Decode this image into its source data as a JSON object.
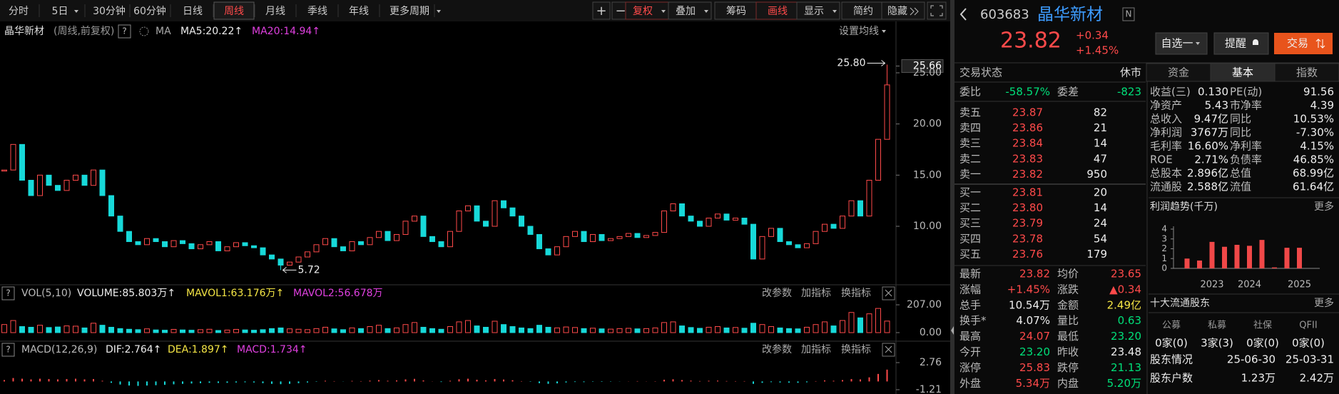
{
  "toolbar": {
    "periods": [
      "分时",
      "5日",
      "30分钟",
      "60分钟",
      "日线",
      "周线",
      "月线",
      "季线",
      "年线",
      "更多周期"
    ],
    "active_period_index": 5,
    "tools": [
      "+",
      "−",
      "复权",
      "叠加",
      "筹码",
      "画线",
      "显示",
      "简约",
      "隐藏"
    ],
    "highlight_tool_indexes": [
      2,
      5
    ]
  },
  "price_chart": {
    "stock_name": "晶华新材",
    "params": "(周线,前复权)",
    "help": "?",
    "ma_label": "MA",
    "ma5": "MA5:20.22↑",
    "ma20": "MA20:14.94↑",
    "settings": "设置均线",
    "ylim": [
      4.56,
      27.93
    ],
    "yticks": [
      25.66,
      {
        "value": 25,
        "label": "25.00"
      },
      {
        "value": 20,
        "label": "20.00"
      },
      {
        "value": 15,
        "label": "15.00"
      },
      {
        "value": 10,
        "label": "10.00"
      }
    ],
    "closes": [
      15.5,
      18.0,
      14.5,
      13.0,
      15.0,
      14.0,
      13.5,
      14.5,
      15.0,
      14.0,
      15.5,
      13.0,
      11.0,
      9.5,
      8.5,
      8.2,
      8.8,
      8.5,
      8.0,
      8.6,
      8.3,
      7.8,
      8.2,
      8.5,
      7.6,
      8.0,
      8.4,
      8.1,
      7.9,
      7.2,
      6.8,
      6.2,
      6.5,
      7.0,
      7.5,
      8.2,
      8.8,
      8.0,
      7.6,
      8.5,
      8.2,
      8.9,
      9.5,
      8.6,
      9.2,
      10.5,
      11.0,
      9.0,
      8.5,
      8.0,
      9.5,
      11.5,
      12.0,
      10.5,
      10.0,
      12.5,
      11.8,
      11.0,
      10.0,
      9.2,
      7.8,
      7.2,
      8.0,
      9.0,
      9.5,
      8.5,
      9.2,
      8.6,
      8.8,
      9.0,
      9.3,
      8.9,
      9.1,
      9.4,
      11.5,
      12.2,
      11.0,
      10.5,
      10.0,
      10.8,
      11.2,
      10.6,
      10.8,
      10.2,
      6.8,
      9.0,
      9.8,
      8.5,
      8.2,
      7.9,
      8.3,
      9.5,
      10.2,
      9.8,
      11.0,
      12.5,
      11.0,
      14.5,
      18.5,
      23.82
    ],
    "high_marker": {
      "value": 25.8,
      "label": "25.80"
    },
    "low_marker": {
      "value": 5.72,
      "label": "5.72"
    }
  },
  "volume_panel": {
    "help": "?",
    "title": "VOL(5,10)",
    "volume": "VOLUME:85.803万↑",
    "mavol1": "MAVOL1:63.176万↑",
    "mavol2": "MAVOL2:56.678万",
    "buttons": [
      "改参数",
      "加指标",
      "换指标"
    ],
    "ylim": [
      0,
      255
    ],
    "yticks": [
      {
        "value": 207,
        "label": "207.00"
      },
      {
        "value": 0,
        "label": "0.00"
      }
    ],
    "values": [
      60,
      90,
      45,
      40,
      55,
      38,
      42,
      50,
      48,
      35,
      70,
      55,
      40,
      30,
      25,
      22,
      28,
      20,
      18,
      24,
      20,
      18,
      22,
      25,
      16,
      19,
      24,
      20,
      18,
      22,
      30,
      35,
      28,
      25,
      22,
      30,
      40,
      28,
      22,
      35,
      30,
      45,
      55,
      30,
      35,
      60,
      75,
      40,
      30,
      25,
      45,
      80,
      90,
      50,
      40,
      85,
      60,
      45,
      35,
      30,
      55,
      40,
      35,
      42,
      38,
      30,
      33,
      28,
      26,
      30,
      32,
      28,
      30,
      35,
      75,
      80,
      50,
      38,
      32,
      40,
      45,
      35,
      38,
      33,
      70,
      60,
      45,
      35,
      30,
      28,
      40,
      60,
      80,
      50,
      90,
      150,
      110,
      140,
      180,
      85.803
    ]
  },
  "macd_panel": {
    "help": "?",
    "title": "MACD(12,26,9)",
    "dif": "DIF:2.764↑",
    "dea": "DEA:1.897↑",
    "macd": "MACD:1.734↑",
    "buttons": [
      "改参数",
      "加指标",
      "换指标"
    ],
    "ylim": [
      -1.84,
      3.6
    ],
    "yticks": [
      2.76,
      -1.21
    ],
    "values": [
      0.2,
      0.5,
      0.4,
      0.3,
      0.4,
      0.35,
      0.3,
      0.35,
      0.4,
      0.3,
      0.35,
      0.1,
      -0.2,
      -0.45,
      -0.6,
      -0.65,
      -0.6,
      -0.55,
      -0.5,
      -0.42,
      -0.35,
      -0.3,
      -0.25,
      -0.2,
      -0.22,
      -0.2,
      -0.15,
      -0.12,
      -0.15,
      -0.25,
      -0.35,
      -0.4,
      -0.35,
      -0.25,
      -0.15,
      -0.05,
      0.1,
      0.05,
      -0.02,
      0.08,
      0.05,
      0.12,
      0.2,
      0.1,
      0.15,
      0.3,
      0.38,
      0.15,
      0.02,
      -0.08,
      0.1,
      0.32,
      0.4,
      0.25,
      0.15,
      0.35,
      0.28,
      0.18,
      0.05,
      -0.05,
      -0.25,
      -0.35,
      -0.28,
      -0.15,
      -0.08,
      -0.1,
      -0.05,
      -0.06,
      -0.04,
      -0.02,
      0.02,
      0.0,
      0.02,
      0.04,
      0.25,
      0.32,
      0.2,
      0.12,
      0.06,
      0.1,
      0.12,
      0.06,
      0.05,
      0.0,
      -0.35,
      -0.2,
      -0.1,
      -0.15,
      -0.18,
      -0.2,
      -0.12,
      0.05,
      0.15,
      0.1,
      0.2,
      0.35,
      0.3,
      0.6,
      1.1,
      1.734
    ]
  },
  "quote": {
    "code": "603683",
    "name": "晶华新材",
    "badge": "N",
    "price": "23.82",
    "change": "+0.34",
    "change_pct": "+1.45%",
    "buttons": [
      "自选一",
      "提醒",
      "交易"
    ]
  },
  "order_book": {
    "status_label": "交易状态",
    "status": "休市",
    "ratio_label": "委比",
    "ratio": "-58.57%",
    "diff_label": "委差",
    "diff": "-823",
    "asks": [
      [
        "卖五",
        "23.87",
        "82"
      ],
      [
        "卖四",
        "23.86",
        "21"
      ],
      [
        "卖三",
        "23.84",
        "14"
      ],
      [
        "卖二",
        "23.83",
        "47"
      ],
      [
        "卖一",
        "23.82",
        "950"
      ]
    ],
    "bids": [
      [
        "买一",
        "23.81",
        "20"
      ],
      [
        "买二",
        "23.80",
        "14"
      ],
      [
        "买三",
        "23.79",
        "24"
      ],
      [
        "买四",
        "23.78",
        "54"
      ],
      [
        "买五",
        "23.76",
        "179"
      ]
    ]
  },
  "stats": [
    [
      "最新",
      "23.82",
      "均价",
      "23.65"
    ],
    [
      "涨幅",
      "+1.45%",
      "涨跌",
      "▲0.34"
    ],
    [
      "总手",
      "10.54万",
      "金额",
      "2.49亿"
    ],
    [
      "换手*",
      "4.07%",
      "量比",
      "0.63"
    ],
    [
      "最高",
      "24.07",
      "最低",
      "23.20"
    ],
    [
      "今开",
      "23.20",
      "昨收",
      "23.48"
    ],
    [
      "涨停",
      "25.83",
      "跌停",
      "21.13"
    ],
    [
      "外盘",
      "5.34万",
      "内盘",
      "5.20万"
    ]
  ],
  "fundamentals": {
    "tabs": [
      "资金",
      "基本",
      "指数"
    ],
    "active_tab_index": 1,
    "rows": [
      [
        "收益(三)",
        "0.130",
        "PE(动)",
        "91.56"
      ],
      [
        "净资产",
        "5.43",
        "市净率",
        "4.39"
      ],
      [
        "总收入",
        "9.47亿",
        "同比",
        "10.53%"
      ],
      [
        "净利润",
        "3767万",
        "同比",
        "-7.30%"
      ],
      [
        "毛利率",
        "16.60%",
        "净利率",
        "4.15%"
      ],
      [
        "ROE",
        "2.71%",
        "负债率",
        "46.85%"
      ],
      [
        "总股本",
        "2.896亿",
        "总值",
        "68.99亿"
      ],
      [
        "流通股",
        "2.588亿",
        "流值",
        "61.64亿"
      ]
    ]
  },
  "profit_trend": {
    "type": "bar",
    "title": "利润趋势(千万)",
    "more": "更多",
    "color": "#f04848",
    "categories": [
      null,
      null,
      "2023",
      null,
      null,
      "2024",
      null,
      null,
      null,
      "2025"
    ],
    "values": [
      1.0,
      0.8,
      2.7,
      2.2,
      2.4,
      2.3,
      2.9,
      0.1,
      2.1,
      2.1
    ],
    "ylim": [
      0,
      4
    ],
    "yticks": [
      0,
      1,
      2,
      3,
      4
    ]
  },
  "shareholders": {
    "title": "十大流通股东",
    "more": "更多",
    "headers": [
      "公募",
      "私募",
      "社保",
      "QFII"
    ],
    "values": [
      "0家(0)",
      "3家(3)",
      "0家(0)",
      "0家(0)"
    ],
    "rows": [
      [
        "股东情况",
        "25-06-30",
        "25-03-31"
      ],
      [
        "股东户数",
        "1.23万",
        "2.42万"
      ]
    ]
  }
}
